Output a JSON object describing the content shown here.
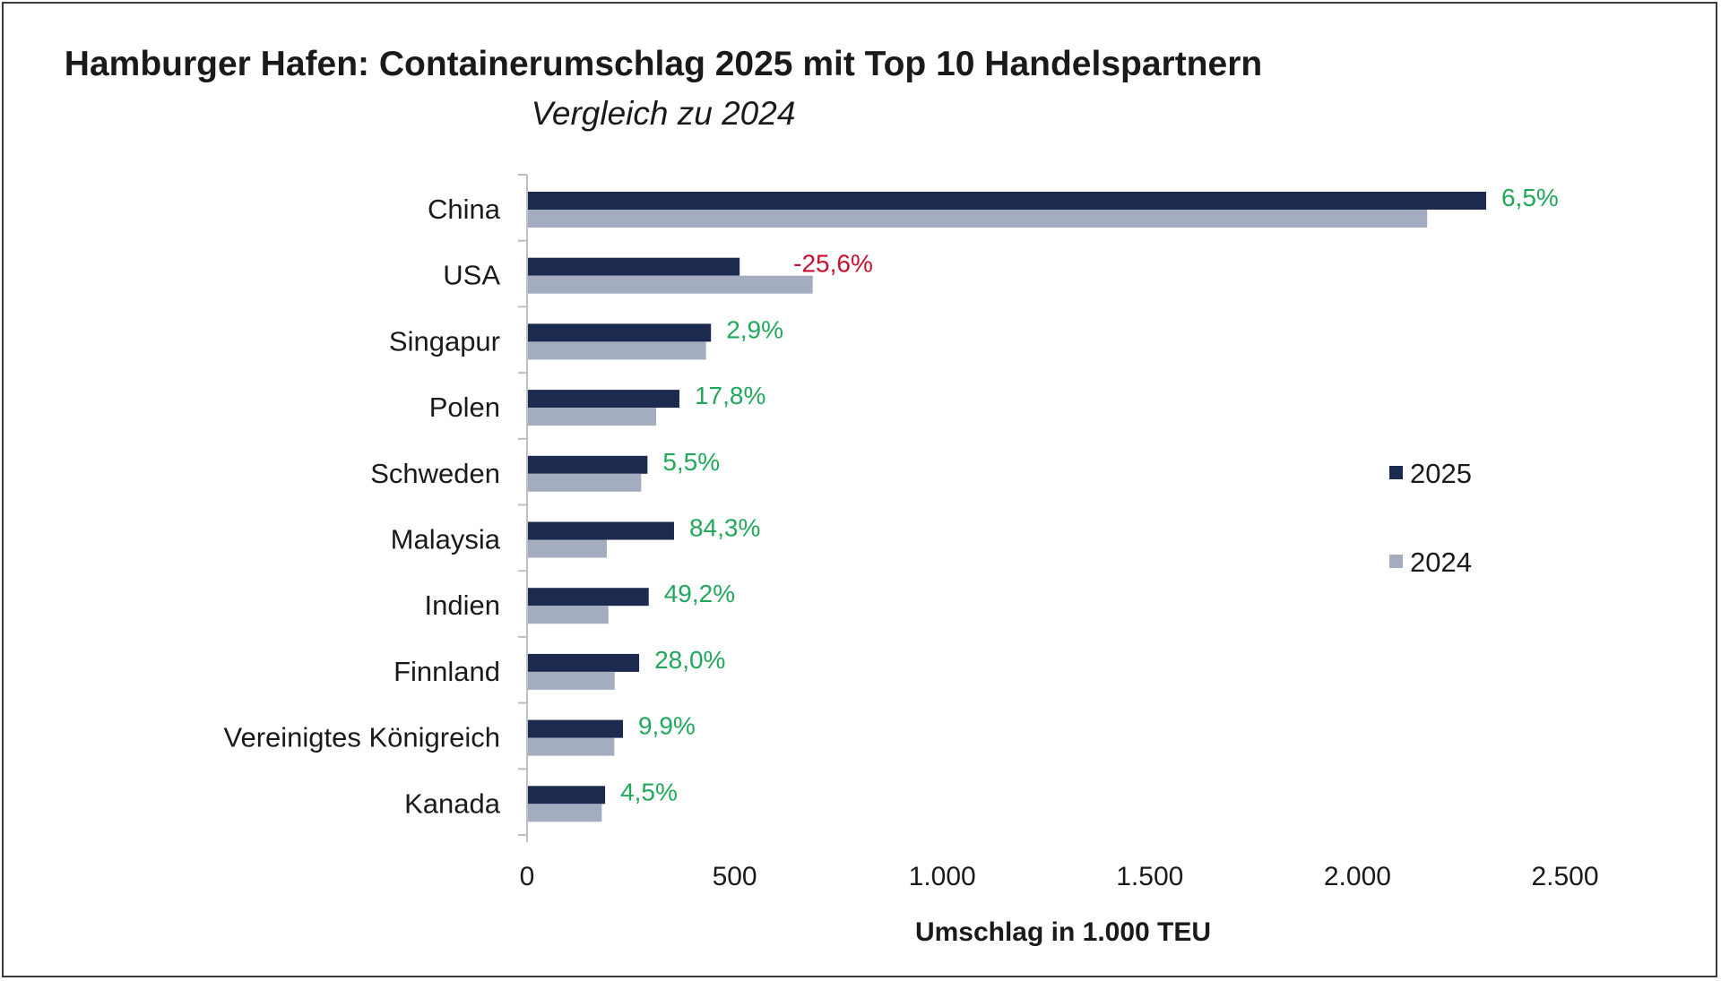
{
  "chart_data": {
    "type": "bar",
    "orientation": "horizontal",
    "title": "Hamburger Hafen: Containerumschlag 2025 mit Top 10 Handelspartnern",
    "subtitle": "Vergleich zu 2024",
    "xlabel": "Umschlag in 1.000 TEU",
    "ylabel": "",
    "xlim": [
      0,
      2500
    ],
    "xticks": [
      0,
      500,
      1000,
      1500,
      2000,
      2500
    ],
    "xtick_labels": [
      "0",
      "500",
      "1.000",
      "1.500",
      "2.000",
      "2.500"
    ],
    "categories": [
      "China",
      "USA",
      "Singapur",
      "Polen",
      "Schweden",
      "Malaysia",
      "Indien",
      "Finnland",
      "Vereinigtes Königreich",
      "Kanada"
    ],
    "series": [
      {
        "name": "2025",
        "color": "#1b2a4e",
        "values": [
          2310,
          512,
          443,
          367,
          290,
          354,
          293,
          270,
          231,
          188
        ]
      },
      {
        "name": "2024",
        "color": "#a3adbf",
        "values": [
          2168,
          688,
          431,
          311,
          275,
          192,
          196,
          211,
          210,
          180
        ]
      }
    ],
    "data_labels": [
      "6,5%",
      "-25,6%",
      "2,9%",
      "17,8%",
      "5,5%",
      "84,3%",
      "49,2%",
      "28,0%",
      "9,9%",
      "4,5%"
    ],
    "data_label_colors": [
      "#22a85a",
      "#c8102e",
      "#22a85a",
      "#22a85a",
      "#22a85a",
      "#22a85a",
      "#22a85a",
      "#22a85a",
      "#22a85a",
      "#22a85a"
    ],
    "grid": false,
    "legend_position": "right"
  }
}
